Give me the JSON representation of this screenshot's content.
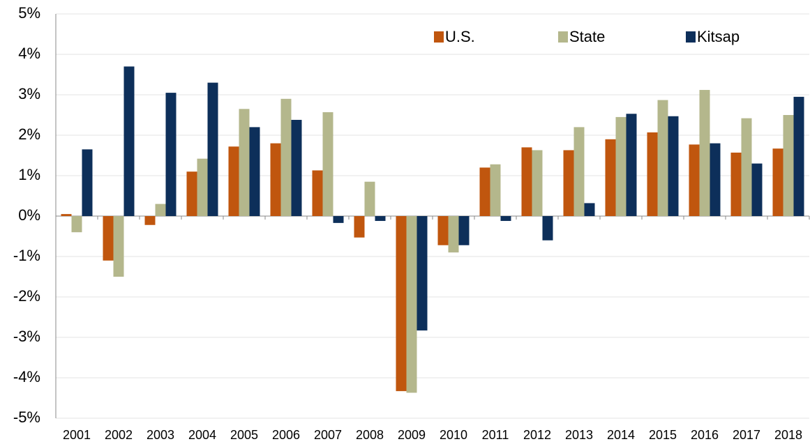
{
  "chart_data": {
    "type": "bar",
    "categories": [
      "2001",
      "2002",
      "2003",
      "2004",
      "2005",
      "2006",
      "2007",
      "2008",
      "2009",
      "2010",
      "2011",
      "2012",
      "2013",
      "2014",
      "2015",
      "2016",
      "2017",
      "2018"
    ],
    "series": [
      {
        "name": "U.S.",
        "color": "#c0560e",
        "values": [
          0.05,
          -1.1,
          -0.22,
          1.1,
          1.72,
          1.8,
          1.13,
          -0.53,
          -4.33,
          -0.72,
          1.2,
          1.7,
          1.63,
          1.9,
          2.07,
          1.77,
          1.57,
          1.67
        ]
      },
      {
        "name": "State",
        "color": "#b4b78c",
        "values": [
          -0.4,
          -1.5,
          0.3,
          1.42,
          2.65,
          2.9,
          2.57,
          0.85,
          -4.37,
          -0.9,
          1.28,
          1.63,
          2.2,
          2.45,
          2.87,
          3.12,
          2.42,
          2.5
        ]
      },
      {
        "name": "Kitsap",
        "color": "#0d2f5a",
        "values": [
          1.65,
          3.7,
          3.05,
          3.3,
          2.2,
          2.38,
          -0.17,
          -0.12,
          -2.83,
          -0.72,
          -0.12,
          -0.6,
          0.32,
          2.53,
          2.47,
          1.8,
          1.3,
          2.95
        ]
      }
    ],
    "ylim": [
      -5,
      5
    ],
    "yticks": [
      {
        "value": -5,
        "label": "-5%"
      },
      {
        "value": -4,
        "label": "-4%"
      },
      {
        "value": -3,
        "label": "-3%"
      },
      {
        "value": -2,
        "label": "-2%"
      },
      {
        "value": -1,
        "label": "-1%"
      },
      {
        "value": 0,
        "label": "0%"
      },
      {
        "value": 1,
        "label": "1%"
      },
      {
        "value": 2,
        "label": "2%"
      },
      {
        "value": 3,
        "label": "3%"
      },
      {
        "value": 4,
        "label": "4%"
      },
      {
        "value": 5,
        "label": "5%"
      }
    ],
    "grid": true,
    "legend": "top-right"
  }
}
